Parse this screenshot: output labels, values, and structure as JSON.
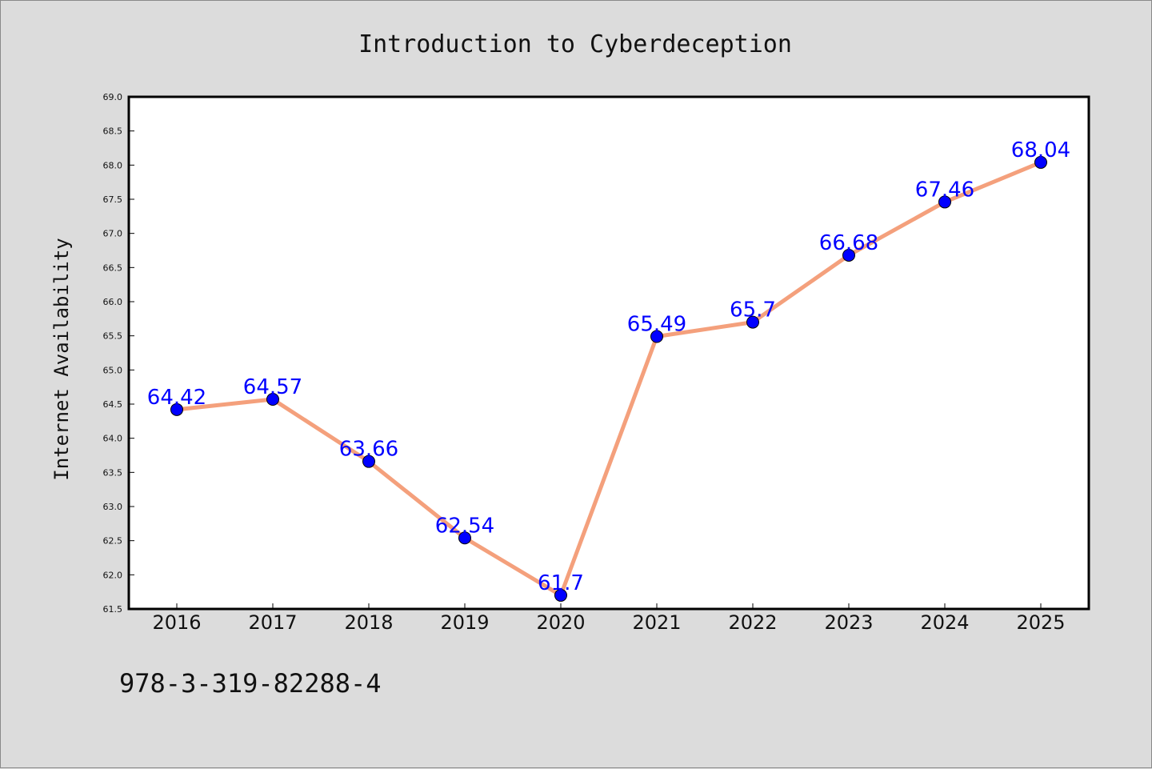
{
  "chart_data": {
    "type": "line",
    "title": "Introduction to Cyberdeception",
    "xlabel": "",
    "ylabel": "Internet Availability",
    "categories": [
      "2016",
      "2017",
      "2018",
      "2019",
      "2020",
      "2021",
      "2022",
      "2023",
      "2024",
      "2025"
    ],
    "series": [
      {
        "values": [
          64.42,
          64.57,
          63.66,
          62.54,
          61.7,
          65.49,
          65.7,
          66.68,
          67.46,
          68.04
        ],
        "data_labels": [
          "64.42",
          "64.57",
          "63.66",
          "62.54",
          "61.7",
          "65.49",
          "65.7",
          "66.68",
          "67.46",
          "68.04"
        ],
        "line_color": "#f4a07c",
        "marker_color": "#0000ff"
      }
    ],
    "ylim": [
      61.5,
      69.0
    ],
    "yticks": [
      "61.5",
      "62.0",
      "62.5",
      "63.0",
      "63.5",
      "64.0",
      "64.5",
      "65.0",
      "65.5",
      "66.0",
      "66.5",
      "67.0",
      "67.5",
      "68.0",
      "68.5",
      "69.0"
    ],
    "grid": false,
    "legend": "none"
  },
  "footer": {
    "isbn": "978-3-319-82288-4"
  },
  "colors": {
    "background": "#dcdcdc",
    "plot_background": "#ffffff",
    "line": "#f4a07c",
    "marker": "#0000ff",
    "data_label": "#0000ff"
  }
}
